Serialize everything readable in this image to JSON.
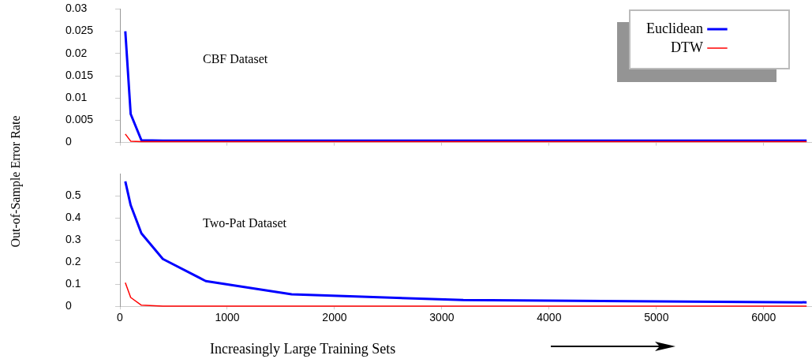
{
  "chart_data": [
    {
      "type": "line",
      "ylabel": "Out-of-Sample Error Rate",
      "annotations": [
        "CBF Dataset"
      ],
      "x": [
        50,
        100,
        200,
        400,
        800,
        1600,
        3200,
        6400
      ],
      "xlim": [
        0,
        6450
      ],
      "xticks": [
        0,
        1000,
        2000,
        3000,
        4000,
        5000,
        6000
      ],
      "ylim": [
        0,
        0.03
      ],
      "yticks": [
        0,
        0.005,
        0.01,
        0.015,
        0.02,
        0.025,
        0.03
      ],
      "tick_labels": "y",
      "legend": "top right",
      "series": [
        {
          "name": "Euclidean",
          "color": "#0000ff",
          "values": [
            0.025,
            0.0064,
            0.0005,
            0.0004,
            0.0004,
            0.0004,
            0.0004,
            0.0004
          ]
        },
        {
          "name": "DTW",
          "color": "#ff0000",
          "values": [
            0.0019,
            0.0003,
            0.0002,
            0.0002,
            0.0002,
            0.0002,
            0.0002,
            0.0002
          ]
        }
      ]
    },
    {
      "type": "line",
      "xlabel": "Increasingly Large Training Sets",
      "annotations": [
        "Two-Pat Dataset"
      ],
      "x": [
        50,
        100,
        200,
        400,
        800,
        1600,
        3200,
        6400
      ],
      "xlim": [
        0,
        6450
      ],
      "xticks": [
        0,
        1000,
        2000,
        3000,
        4000,
        5000,
        6000
      ],
      "ylim": [
        0,
        0.6
      ],
      "yticks": [
        0,
        0.1,
        0.2,
        0.3,
        0.4,
        0.5
      ],
      "series": [
        {
          "color": "#0000ff",
          "values": [
            0.565,
            0.457,
            0.33,
            0.214,
            0.114,
            0.054,
            0.028,
            0.018
          ]
        },
        {
          "color": "#ff0000",
          "values": [
            0.107,
            0.04,
            0.005,
            0.001,
            0.001,
            0.001,
            0.001,
            0.001
          ]
        }
      ]
    }
  ]
}
